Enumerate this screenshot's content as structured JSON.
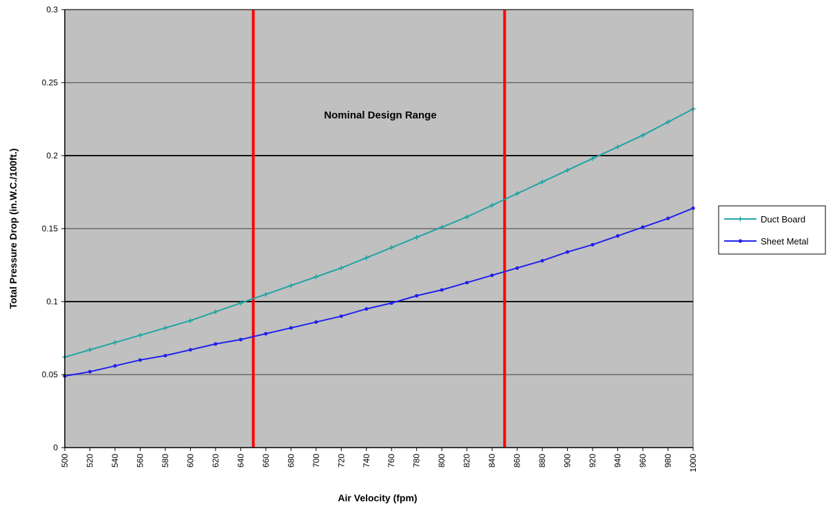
{
  "chart_data": {
    "type": "line",
    "title": "",
    "xlabel": "Air Velocity (fpm)",
    "ylabel": "Total Pressure Drop (in.W.C./100ft.)",
    "xlim": [
      500,
      1000
    ],
    "ylim": [
      0,
      0.3
    ],
    "x_ticks": [
      500,
      520,
      540,
      560,
      580,
      600,
      620,
      640,
      660,
      680,
      700,
      720,
      740,
      760,
      780,
      800,
      820,
      840,
      860,
      880,
      900,
      920,
      940,
      960,
      980,
      1000
    ],
    "y_ticks": [
      0,
      0.05,
      0.1,
      0.15,
      0.2,
      0.25,
      0.3
    ],
    "y_tick_labels": [
      "0",
      "0.05",
      "0.1",
      "0.15",
      "0.2",
      "0.25",
      "0.3"
    ],
    "grid": true,
    "legend_position": "right",
    "plot_background": "#c0c0c0",
    "annotation": "Nominal Design Range",
    "vertical_lines": [
      {
        "x": 650,
        "color": "#ff0000"
      },
      {
        "x": 850,
        "color": "#ff0000"
      }
    ],
    "series": [
      {
        "name": "Duct Board",
        "color": "#1fa3a3",
        "marker": "plus",
        "x": [
          500,
          520,
          540,
          560,
          580,
          600,
          620,
          640,
          660,
          680,
          700,
          720,
          740,
          760,
          780,
          800,
          820,
          840,
          860,
          880,
          900,
          920,
          940,
          960,
          980,
          1000
        ],
        "y": [
          0.062,
          0.067,
          0.072,
          0.077,
          0.082,
          0.087,
          0.093,
          0.099,
          0.105,
          0.111,
          0.117,
          0.123,
          0.13,
          0.137,
          0.144,
          0.151,
          0.158,
          0.166,
          0.174,
          0.182,
          0.19,
          0.198,
          0.206,
          0.214,
          0.223,
          0.232
        ]
      },
      {
        "name": "Sheet Metal",
        "color": "#2020ee",
        "marker": "dot",
        "x": [
          500,
          520,
          540,
          560,
          580,
          600,
          620,
          640,
          660,
          680,
          700,
          720,
          740,
          760,
          780,
          800,
          820,
          840,
          860,
          880,
          900,
          920,
          940,
          960,
          980,
          1000
        ],
        "y": [
          0.049,
          0.052,
          0.056,
          0.06,
          0.063,
          0.067,
          0.071,
          0.074,
          0.078,
          0.082,
          0.086,
          0.09,
          0.095,
          0.099,
          0.104,
          0.108,
          0.113,
          0.118,
          0.123,
          0.128,
          0.134,
          0.139,
          0.145,
          0.151,
          0.157,
          0.164
        ]
      }
    ]
  }
}
